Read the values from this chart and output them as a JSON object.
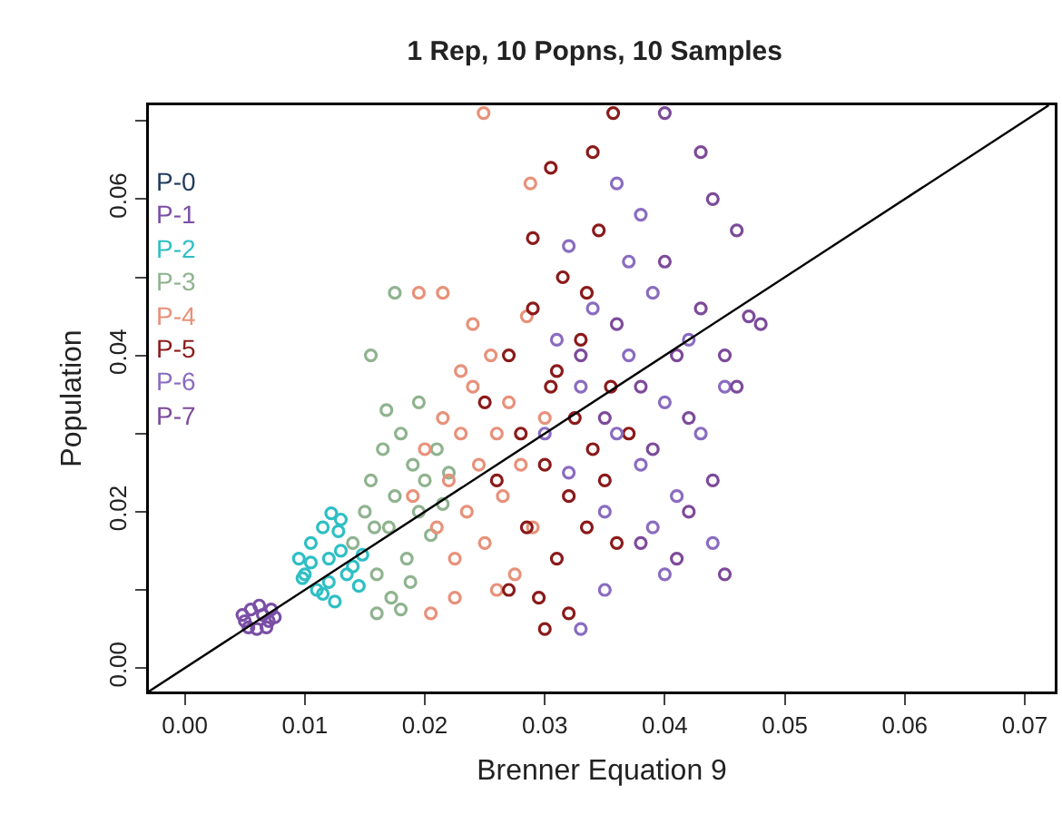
{
  "chart_data": {
    "type": "scatter",
    "title": "1 Rep, 10 Popns, 10 Samples",
    "xlabel": "Brenner Equation 9",
    "ylabel": "Population",
    "xlim": [
      -0.003,
      0.0725
    ],
    "ylim": [
      -0.003,
      0.072
    ],
    "xticks": [
      {
        "value": 0,
        "label": "0.00"
      },
      0.01,
      0.02,
      0.03,
      0.04,
      0.05,
      0.06,
      0.07
    ],
    "yticks": [
      {
        "value": 0,
        "label": "0.00"
      },
      {
        "value": 0.01,
        "label": null
      },
      0.02,
      {
        "value": 0.03,
        "label": null
      },
      0.04,
      {
        "value": 0.05,
        "label": null
      },
      0.06,
      {
        "value": 0.07,
        "label": null
      }
    ],
    "grid": false,
    "legend": "top left",
    "marker": "circle",
    "series": [
      {
        "name": "P-0",
        "color": "#1f3b5c"
      },
      {
        "name": "P-1",
        "color": "#7a4fa6",
        "x": [
          0.005,
          0.0055,
          0.006,
          0.0065,
          0.007,
          0.0072,
          0.0058,
          0.0048,
          0.0068,
          0.0062,
          0.0075,
          0.0053
        ],
        "values": [
          0.006,
          0.0075,
          0.005,
          0.0068,
          0.006,
          0.0075,
          null,
          0.0068,
          0.0052,
          0.008,
          0.0065,
          0.0052
        ]
      },
      {
        "name": "P-2",
        "color": "#2ebfc4",
        "x": [
          0.0095,
          0.01,
          0.0105,
          0.011,
          0.0115,
          0.012,
          0.0125,
          0.013,
          0.0135,
          0.014,
          0.0145,
          0.0105,
          0.012,
          0.013,
          0.0115,
          0.014,
          0.0128,
          0.0098,
          0.0148,
          0.0122
        ],
        "values": [
          0.014,
          0.012,
          0.016,
          0.01,
          0.018,
          0.014,
          0.0085,
          0.019,
          0.012,
          null,
          0.0105,
          0.0135,
          0.011,
          0.015,
          0.0095,
          0.013,
          0.0175,
          0.0115,
          0.0145,
          0.0198
        ]
      },
      {
        "name": "P-3",
        "color": "#8fb38f",
        "x": [
          0.014,
          0.015,
          0.0155,
          0.016,
          0.0165,
          0.017,
          0.0175,
          0.018,
          0.0185,
          0.019,
          0.0195,
          0.02,
          0.0205,
          0.021,
          0.0215,
          0.016,
          0.018,
          0.0168,
          0.0195,
          0.0175,
          0.0155,
          0.022,
          0.0158,
          0.0188,
          0.0172
        ],
        "values": [
          0.016,
          0.02,
          0.024,
          0.012,
          0.028,
          0.018,
          0.022,
          0.03,
          0.014,
          0.026,
          0.02,
          0.024,
          0.017,
          0.028,
          0.021,
          0.007,
          0.0075,
          0.033,
          0.034,
          0.048,
          0.04,
          0.025,
          0.018,
          0.011,
          0.009
        ]
      },
      {
        "name": "P-4",
        "color": "#e8917a",
        "x": [
          0.019,
          0.02,
          0.021,
          0.0215,
          0.022,
          0.0225,
          0.023,
          0.0235,
          0.024,
          0.0245,
          0.025,
          0.0255,
          0.026,
          0.0265,
          0.027,
          0.0275,
          0.028,
          0.0285,
          0.029,
          0.03,
          0.0225,
          0.0205,
          0.024,
          0.0215,
          0.0195,
          0.0249,
          0.0288,
          0.023,
          0.026
        ],
        "values": [
          0.022,
          0.028,
          0.018,
          0.032,
          0.024,
          0.014,
          0.03,
          0.02,
          0.036,
          0.026,
          0.016,
          0.04,
          0.03,
          0.022,
          0.034,
          0.012,
          0.026,
          0.045,
          0.018,
          0.032,
          0.009,
          0.007,
          0.044,
          0.048,
          0.048,
          0.071,
          0.062,
          0.038,
          0.01
        ]
      },
      {
        "name": "P-5",
        "color": "#8b1a1a",
        "x": [
          0.025,
          0.026,
          0.027,
          0.028,
          0.0285,
          0.029,
          0.03,
          0.0305,
          0.031,
          0.0315,
          0.032,
          0.0325,
          0.033,
          0.0335,
          0.034,
          0.0345,
          0.035,
          0.0355,
          0.036,
          0.0295,
          0.03,
          0.032,
          0.0357,
          0.034,
          0.0305,
          0.029,
          0.027,
          0.0335,
          0.031,
          0.037
        ],
        "values": [
          0.034,
          0.024,
          0.04,
          0.03,
          0.018,
          0.046,
          0.026,
          0.036,
          0.014,
          0.05,
          0.022,
          0.032,
          0.042,
          0.018,
          0.028,
          0.056,
          0.024,
          0.036,
          0.016,
          0.009,
          0.005,
          0.007,
          0.071,
          0.066,
          0.064,
          0.055,
          0.01,
          0.048,
          0.038,
          0.03
        ]
      },
      {
        "name": "P-6",
        "color": "#8a6cc0",
        "x": [
          0.03,
          0.031,
          0.032,
          0.033,
          0.034,
          0.035,
          0.036,
          0.037,
          0.038,
          0.039,
          0.04,
          0.041,
          0.042,
          0.043,
          0.044,
          0.036,
          0.038,
          0.035,
          0.033,
          0.04,
          0.045,
          0.037,
          0.032,
          0.039
        ],
        "values": [
          0.03,
          0.042,
          0.025,
          0.036,
          0.046,
          0.02,
          0.03,
          0.04,
          0.026,
          0.048,
          0.034,
          0.022,
          0.042,
          0.03,
          0.016,
          0.062,
          0.058,
          0.01,
          0.005,
          0.012,
          0.036,
          0.052,
          0.054,
          0.018
        ]
      },
      {
        "name": "P-7",
        "color": "#7d4a9a",
        "x": [
          0.033,
          0.035,
          0.036,
          0.038,
          0.039,
          0.04,
          0.041,
          0.042,
          0.043,
          0.044,
          0.045,
          0.046,
          0.047,
          0.046,
          0.043,
          0.04,
          0.044,
          0.042,
          0.045,
          0.038,
          0.048,
          0.041
        ],
        "values": [
          0.04,
          0.032,
          0.044,
          0.036,
          0.028,
          0.052,
          0.04,
          0.032,
          0.046,
          0.024,
          0.04,
          0.036,
          0.045,
          0.056,
          0.066,
          0.071,
          0.06,
          0.02,
          0.012,
          0.016,
          0.044,
          0.014
        ]
      },
      {
        "type": "line",
        "color": "#000000",
        "marker": "none",
        "x": [
          -0.003,
          0.072
        ],
        "values": [
          -0.003,
          0.072
        ]
      }
    ]
  }
}
